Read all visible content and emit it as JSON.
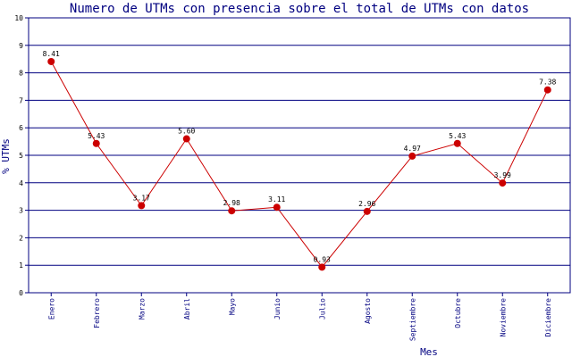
{
  "chart_data": {
    "type": "line",
    "title": "Numero de UTMs con presencia sobre el total de UTMs con datos",
    "xlabel": "Mes",
    "ylabel": "% UTMs",
    "ylim": [
      0,
      10
    ],
    "yticks": [
      "0",
      "1",
      "2",
      "3",
      "4",
      "5",
      "6",
      "7",
      "8",
      "9",
      "10"
    ],
    "grid": true,
    "categories": [
      "Enero",
      "Febrero",
      "Marzo",
      "Abril",
      "Mayo",
      "Junio",
      "Julio",
      "Agosto",
      "Septiembre",
      "Octubre",
      "Noviembre",
      "Diciembre"
    ],
    "values": [
      8.41,
      5.43,
      3.17,
      5.6,
      2.98,
      3.11,
      0.93,
      2.96,
      4.97,
      5.43,
      3.99,
      7.38
    ],
    "value_labels": [
      "8.41",
      "5.43",
      "3.17",
      "5.60",
      "2.98",
      "3.11",
      "0.93",
      "2.96",
      "4.97",
      "5.43",
      "3.99",
      "7.38"
    ],
    "colors": {
      "line": "#cc0000",
      "marker": "#cc0000",
      "grid": "#000080",
      "axis": "#000080",
      "text": "#000080"
    }
  }
}
